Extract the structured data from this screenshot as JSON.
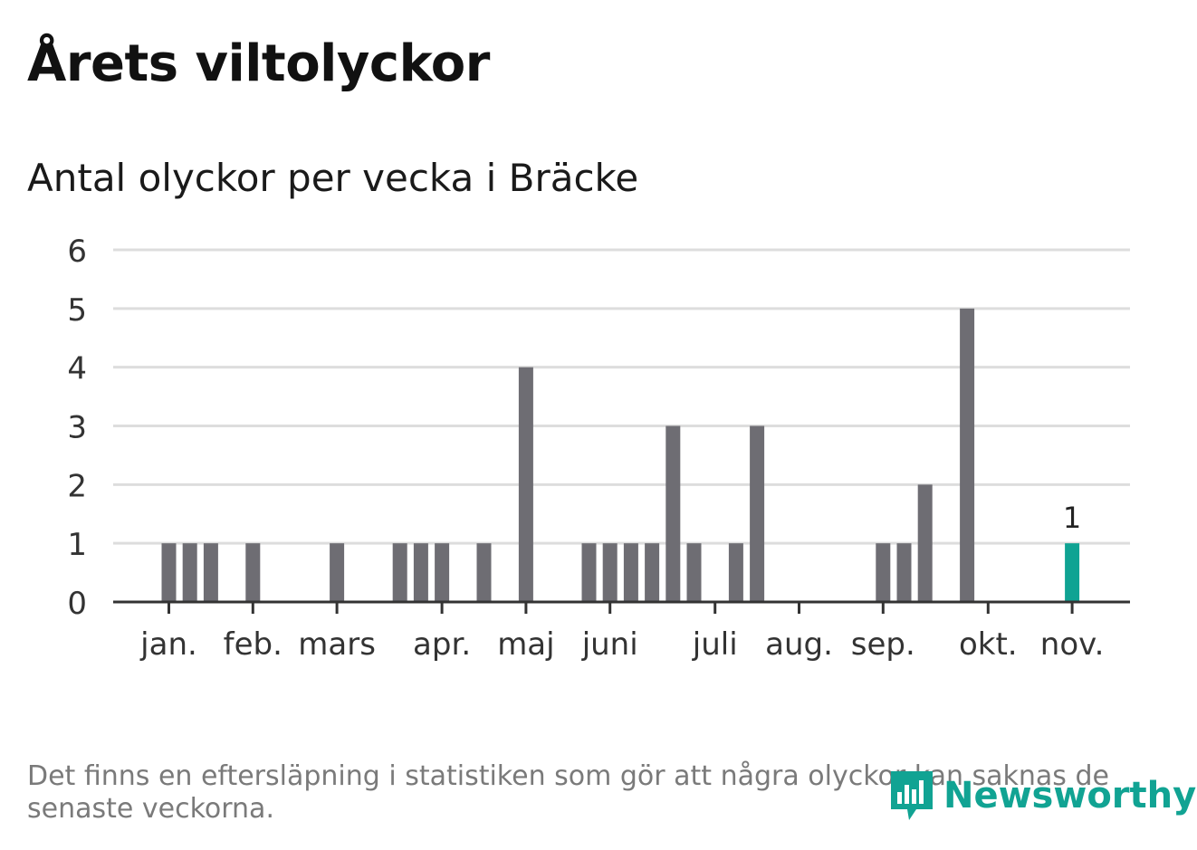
{
  "header": {
    "title": "Årets viltolyckor",
    "subtitle": "Antal olyckor per vecka i Bräcke"
  },
  "footer": {
    "note": "Det finns en eftersläpning i statistiken som gör att några olyckor kan saknas de senaste veckorna.",
    "brand": "Newsworthy"
  },
  "colors": {
    "bar": "#6e6d73",
    "highlight": "#0fa393",
    "grid": "#dddddd",
    "axis": "#333333",
    "brand": "#11a393"
  },
  "chart_data": {
    "type": "bar",
    "ylim": [
      0,
      6
    ],
    "yticks": [
      0,
      1,
      2,
      3,
      4,
      5,
      6
    ],
    "grid": true,
    "month_ticks": [
      {
        "label": "jan.",
        "week": 1
      },
      {
        "label": "feb.",
        "week": 5
      },
      {
        "label": "mars",
        "week": 9
      },
      {
        "label": "apr.",
        "week": 14
      },
      {
        "label": "maj",
        "week": 18
      },
      {
        "label": "juni",
        "week": 22
      },
      {
        "label": "juli",
        "week": 27
      },
      {
        "label": "aug.",
        "week": 31
      },
      {
        "label": "sep.",
        "week": 35
      },
      {
        "label": "okt.",
        "week": 40
      },
      {
        "label": "nov.",
        "week": 44
      }
    ],
    "bars": [
      {
        "week": 1,
        "value": 1
      },
      {
        "week": 2,
        "value": 1
      },
      {
        "week": 3,
        "value": 1
      },
      {
        "week": 5,
        "value": 1
      },
      {
        "week": 9,
        "value": 1
      },
      {
        "week": 12,
        "value": 1
      },
      {
        "week": 13,
        "value": 1
      },
      {
        "week": 14,
        "value": 1
      },
      {
        "week": 16,
        "value": 1
      },
      {
        "week": 18,
        "value": 4
      },
      {
        "week": 21,
        "value": 1
      },
      {
        "week": 22,
        "value": 1
      },
      {
        "week": 23,
        "value": 1
      },
      {
        "week": 24,
        "value": 1
      },
      {
        "week": 25,
        "value": 3
      },
      {
        "week": 26,
        "value": 1
      },
      {
        "week": 28,
        "value": 1
      },
      {
        "week": 29,
        "value": 3
      },
      {
        "week": 35,
        "value": 1
      },
      {
        "week": 36,
        "value": 1
      },
      {
        "week": 37,
        "value": 2
      },
      {
        "week": 39,
        "value": 5
      },
      {
        "week": 44,
        "value": 1,
        "highlight": true,
        "label": "1"
      }
    ]
  }
}
